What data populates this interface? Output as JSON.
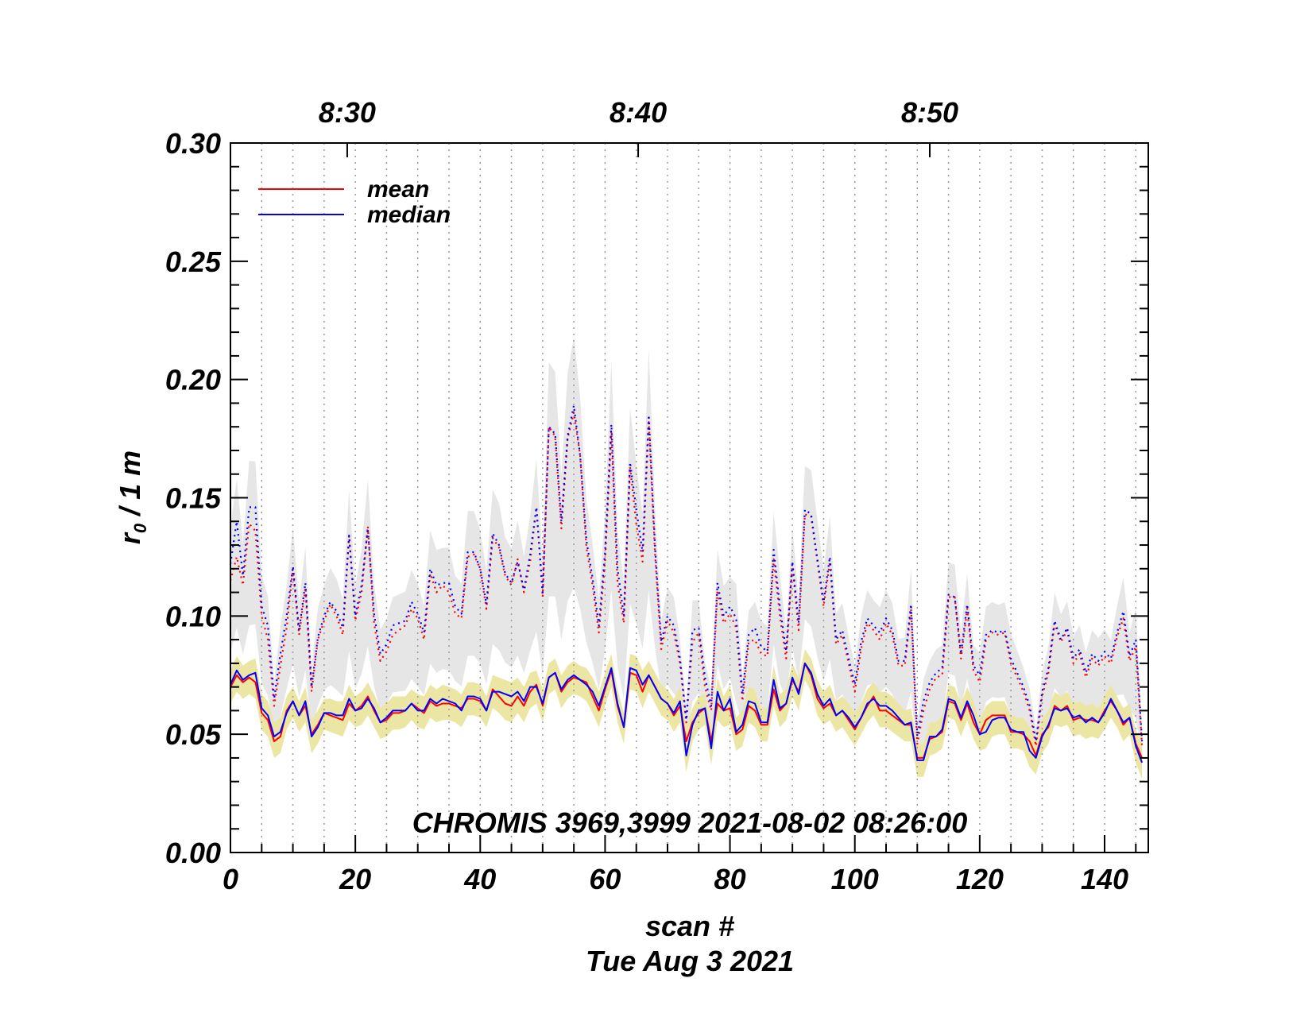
{
  "chart_data": {
    "type": "line",
    "title": "",
    "xlabel": "scan #",
    "xlabel2": "Tue Aug  3 2021",
    "ylabel_main": "r",
    "ylabel_sub": "0",
    "ylabel_rest": " / 1 m",
    "xlim": [
      0,
      147
    ],
    "ylim": [
      0,
      0.3
    ],
    "x_ticks": [
      0,
      20,
      40,
      60,
      80,
      100,
      120,
      140
    ],
    "x_tick_labels": [
      "0",
      "20",
      "40",
      "60",
      "80",
      "100",
      "120",
      "140"
    ],
    "y_ticks": [
      0.0,
      0.05,
      0.1,
      0.15,
      0.2,
      0.25,
      0.3
    ],
    "y_tick_labels": [
      "0.00",
      "0.05",
      "0.10",
      "0.15",
      "0.20",
      "0.25",
      "0.30"
    ],
    "top_axis": {
      "label_positions": [
        18.7,
        65.3,
        112
      ],
      "labels": [
        "8:30",
        "8:40",
        "8:50"
      ]
    },
    "vertical_grid_spacing": 5,
    "annotation": "CHROMIS 3969,3999 2021-08-02 08:26:00",
    "legend": [
      {
        "name": "mean",
        "color": "#ff0000"
      },
      {
        "name": "median",
        "color": "#0000ff"
      }
    ],
    "colors": {
      "mean": "#ff0000",
      "median": "#0000ff",
      "band_low": "#ece6a4",
      "band_high": "#e6e6e6",
      "grid": "#999999"
    },
    "series": [
      {
        "name": "mean",
        "style": "solid",
        "values": [
          0.07,
          0.075,
          0.072,
          0.074,
          0.072,
          0.059,
          0.056,
          0.047,
          0.049,
          0.06,
          0.064,
          0.058,
          0.062,
          0.05,
          0.054,
          0.059,
          0.058,
          0.057,
          0.056,
          0.063,
          0.06,
          0.062,
          0.066,
          0.06,
          0.055,
          0.056,
          0.059,
          0.059,
          0.06,
          0.063,
          0.061,
          0.059,
          0.064,
          0.062,
          0.063,
          0.063,
          0.062,
          0.061,
          0.065,
          0.065,
          0.064,
          0.06,
          0.069,
          0.066,
          0.063,
          0.062,
          0.066,
          0.062,
          0.068,
          0.071,
          0.062,
          0.074,
          0.076,
          0.068,
          0.072,
          0.074,
          0.073,
          0.072,
          0.066,
          0.06,
          0.069,
          0.077,
          0.062,
          0.053,
          0.076,
          0.075,
          0.068,
          0.075,
          0.07,
          0.065,
          0.063,
          0.058,
          0.062,
          0.047,
          0.055,
          0.059,
          0.061,
          0.047,
          0.063,
          0.06,
          0.061,
          0.05,
          0.052,
          0.062,
          0.06,
          0.054,
          0.054,
          0.069,
          0.06,
          0.063,
          0.073,
          0.068,
          0.08,
          0.075,
          0.065,
          0.061,
          0.063,
          0.058,
          0.06,
          0.056,
          0.052,
          0.057,
          0.062,
          0.066,
          0.06,
          0.06,
          0.058,
          0.056,
          0.054,
          0.054,
          0.04,
          0.04,
          0.048,
          0.049,
          0.051,
          0.064,
          0.063,
          0.056,
          0.063,
          0.055,
          0.05,
          0.056,
          0.058,
          0.058,
          0.058,
          0.051,
          0.051,
          0.05,
          0.047,
          0.041,
          0.05,
          0.053,
          0.062,
          0.06,
          0.062,
          0.056,
          0.057,
          0.056,
          0.056,
          0.055,
          0.06,
          0.064,
          0.06,
          0.054,
          0.057,
          0.046,
          0.04
        ]
      },
      {
        "name": "median",
        "style": "solid",
        "values": [
          0.071,
          0.077,
          0.073,
          0.075,
          0.076,
          0.061,
          0.058,
          0.049,
          0.051,
          0.059,
          0.064,
          0.058,
          0.064,
          0.049,
          0.053,
          0.059,
          0.059,
          0.058,
          0.058,
          0.065,
          0.06,
          0.061,
          0.065,
          0.061,
          0.055,
          0.057,
          0.06,
          0.06,
          0.06,
          0.063,
          0.06,
          0.06,
          0.065,
          0.063,
          0.065,
          0.064,
          0.063,
          0.06,
          0.066,
          0.066,
          0.065,
          0.06,
          0.068,
          0.068,
          0.067,
          0.066,
          0.068,
          0.064,
          0.07,
          0.07,
          0.063,
          0.074,
          0.076,
          0.069,
          0.073,
          0.075,
          0.073,
          0.071,
          0.068,
          0.062,
          0.07,
          0.078,
          0.063,
          0.053,
          0.078,
          0.077,
          0.071,
          0.075,
          0.07,
          0.065,
          0.063,
          0.059,
          0.064,
          0.041,
          0.054,
          0.06,
          0.061,
          0.044,
          0.068,
          0.06,
          0.065,
          0.051,
          0.054,
          0.064,
          0.063,
          0.055,
          0.055,
          0.073,
          0.061,
          0.063,
          0.074,
          0.067,
          0.08,
          0.076,
          0.067,
          0.062,
          0.065,
          0.058,
          0.06,
          0.057,
          0.053,
          0.057,
          0.063,
          0.065,
          0.062,
          0.062,
          0.06,
          0.057,
          0.054,
          0.055,
          0.039,
          0.039,
          0.049,
          0.049,
          0.052,
          0.065,
          0.064,
          0.057,
          0.064,
          0.058,
          0.05,
          0.051,
          0.056,
          0.057,
          0.057,
          0.052,
          0.051,
          0.051,
          0.043,
          0.04,
          0.049,
          0.054,
          0.061,
          0.06,
          0.061,
          0.057,
          0.058,
          0.055,
          0.057,
          0.055,
          0.059,
          0.065,
          0.06,
          0.055,
          0.057,
          0.045,
          0.038
        ]
      },
      {
        "name": "mean_high",
        "style": "dotted",
        "color": "#ff0000",
        "values": [
          0.115,
          0.125,
          0.113,
          0.139,
          0.136,
          0.1,
          0.09,
          0.062,
          0.079,
          0.095,
          0.12,
          0.092,
          0.112,
          0.068,
          0.09,
          0.098,
          0.105,
          0.1,
          0.092,
          0.134,
          0.098,
          0.11,
          0.138,
          0.097,
          0.081,
          0.085,
          0.092,
          0.094,
          0.096,
          0.103,
          0.099,
          0.09,
          0.118,
          0.11,
          0.113,
          0.11,
          0.101,
          0.099,
          0.125,
          0.126,
          0.12,
          0.103,
          0.133,
          0.129,
          0.117,
          0.113,
          0.124,
          0.11,
          0.123,
          0.146,
          0.108,
          0.18,
          0.176,
          0.137,
          0.175,
          0.186,
          0.168,
          0.129,
          0.113,
          0.093,
          0.123,
          0.178,
          0.114,
          0.097,
          0.163,
          0.139,
          0.123,
          0.182,
          0.126,
          0.086,
          0.098,
          0.093,
          0.08,
          0.055,
          0.089,
          0.093,
          0.07,
          0.06,
          0.111,
          0.097,
          0.101,
          0.095,
          0.064,
          0.089,
          0.09,
          0.084,
          0.083,
          0.124,
          0.1,
          0.082,
          0.122,
          0.094,
          0.143,
          0.142,
          0.123,
          0.104,
          0.123,
          0.088,
          0.092,
          0.08,
          0.068,
          0.086,
          0.097,
          0.094,
          0.09,
          0.097,
          0.092,
          0.079,
          0.079,
          0.103,
          0.046,
          0.06,
          0.069,
          0.074,
          0.075,
          0.108,
          0.108,
          0.082,
          0.103,
          0.077,
          0.072,
          0.09,
          0.093,
          0.092,
          0.093,
          0.08,
          0.074,
          0.068,
          0.06,
          0.045,
          0.066,
          0.076,
          0.097,
          0.089,
          0.094,
          0.08,
          0.084,
          0.074,
          0.082,
          0.079,
          0.083,
          0.08,
          0.091,
          0.099,
          0.081,
          0.087,
          0.045
        ]
      },
      {
        "name": "median_high",
        "style": "dotted",
        "color": "#0000ff",
        "values": [
          0.122,
          0.14,
          0.117,
          0.146,
          0.146,
          0.104,
          0.096,
          0.065,
          0.084,
          0.1,
          0.121,
          0.094,
          0.114,
          0.07,
          0.091,
          0.1,
          0.106,
          0.102,
          0.095,
          0.134,
          0.1,
          0.113,
          0.137,
          0.101,
          0.084,
          0.088,
          0.096,
          0.097,
          0.098,
          0.106,
          0.101,
          0.093,
          0.12,
          0.113,
          0.114,
          0.114,
          0.104,
          0.101,
          0.127,
          0.127,
          0.12,
          0.105,
          0.135,
          0.13,
          0.118,
          0.114,
          0.123,
          0.111,
          0.126,
          0.146,
          0.11,
          0.18,
          0.177,
          0.14,
          0.176,
          0.189,
          0.168,
          0.132,
          0.116,
          0.096,
          0.127,
          0.181,
          0.12,
          0.1,
          0.165,
          0.145,
          0.127,
          0.185,
          0.129,
          0.089,
          0.1,
          0.096,
          0.082,
          0.056,
          0.094,
          0.095,
          0.074,
          0.062,
          0.114,
          0.1,
          0.104,
          0.099,
          0.067,
          0.092,
          0.095,
          0.087,
          0.085,
          0.128,
          0.104,
          0.085,
          0.123,
          0.097,
          0.145,
          0.143,
          0.124,
          0.106,
          0.125,
          0.09,
          0.094,
          0.082,
          0.071,
          0.089,
          0.099,
          0.096,
          0.093,
          0.099,
          0.094,
          0.081,
          0.081,
          0.105,
          0.049,
          0.064,
          0.072,
          0.076,
          0.078,
          0.109,
          0.108,
          0.084,
          0.105,
          0.079,
          0.075,
          0.092,
          0.094,
          0.093,
          0.094,
          0.082,
          0.076,
          0.07,
          0.062,
          0.047,
          0.068,
          0.078,
          0.098,
          0.09,
          0.095,
          0.082,
          0.086,
          0.076,
          0.084,
          0.081,
          0.085,
          0.082,
          0.093,
          0.102,
          0.083,
          0.09,
          0.047
        ]
      }
    ]
  }
}
